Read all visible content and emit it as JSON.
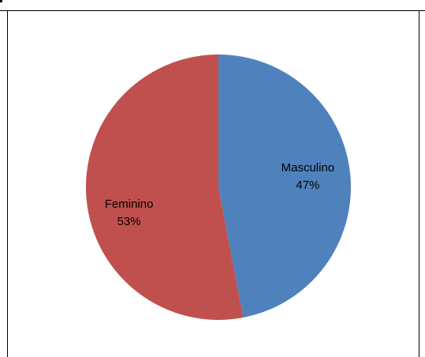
{
  "chart_data": {
    "type": "pie",
    "title": "",
    "slices": [
      {
        "label": "Masculino",
        "value": 47,
        "display": "47%",
        "color": "#4F81BD"
      },
      {
        "label": "Feminino",
        "value": 53,
        "display": "53%",
        "color": "#C0504D"
      }
    ],
    "start_angle": "top",
    "direction": "clockwise",
    "legend": "none"
  }
}
